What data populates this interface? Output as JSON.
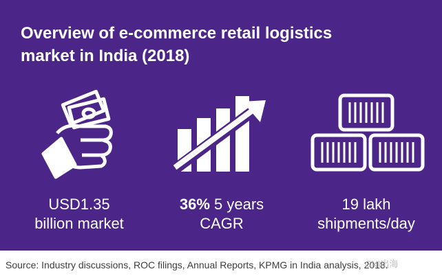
{
  "header": {
    "title_line1": "Overview of e-commerce retail logistics",
    "title_line2": "market in India (2018)"
  },
  "stats": [
    {
      "line1": "USD1.35",
      "line2": "billion market",
      "icon": "hand-holding-money-icon"
    },
    {
      "bold": "36%",
      "line1_rest": " 5 years",
      "line2": "CAGR",
      "icon": "growth-bar-chart-arrow-icon"
    },
    {
      "line1": "19 lakh",
      "line2": "shipments/day",
      "icon": "stacked-boxes-icon"
    }
  ],
  "footer": {
    "source": "Source: Industry discussions, ROC filings, Annual Reports, KPMG in India analysis, 2018.",
    "watermark": "CNI出海"
  },
  "colors": {
    "panel": "#4b2688",
    "text": "#ffffff",
    "source_text": "#3d3d3d"
  }
}
